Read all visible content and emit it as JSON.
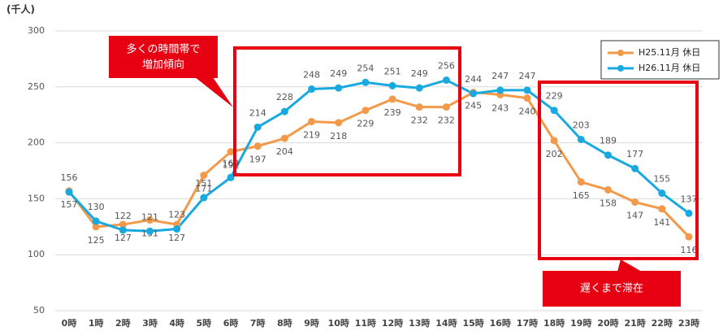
{
  "chart_data": {
    "type": "line",
    "y_label": "(千人)",
    "categories": [
      "0時",
      "1時",
      "2時",
      "3時",
      "4時",
      "5時",
      "6時",
      "7時",
      "8時",
      "9時",
      "10時",
      "11時",
      "12時",
      "13時",
      "14時",
      "15時",
      "16時",
      "17時",
      "18時",
      "19時",
      "20時",
      "21時",
      "22時",
      "23時"
    ],
    "series": [
      {
        "name": "H25.11月 休日",
        "color": "#f39a4a",
        "values": [
          157,
          125,
          127,
          131,
          127,
          171,
          192,
          197,
          204,
          219,
          218,
          229,
          239,
          232,
          232,
          245,
          243,
          240,
          202,
          165,
          158,
          147,
          141,
          116
        ]
      },
      {
        "name": "H26.11月 休日",
        "color": "#19a9e1",
        "values": [
          156,
          130,
          122,
          121,
          123,
          151,
          169,
          214,
          228,
          248,
          249,
          254,
          251,
          249,
          256,
          244,
          247,
          247,
          229,
          203,
          189,
          177,
          155,
          137
        ]
      }
    ],
    "ylim": [
      50,
      300
    ],
    "yticks": [
      50,
      100,
      150,
      200,
      250,
      300
    ],
    "grid": true,
    "legend": "top-right",
    "annotations": [
      "多くの時間帯で",
      "増加傾向",
      "遅くまで滞在"
    ]
  }
}
